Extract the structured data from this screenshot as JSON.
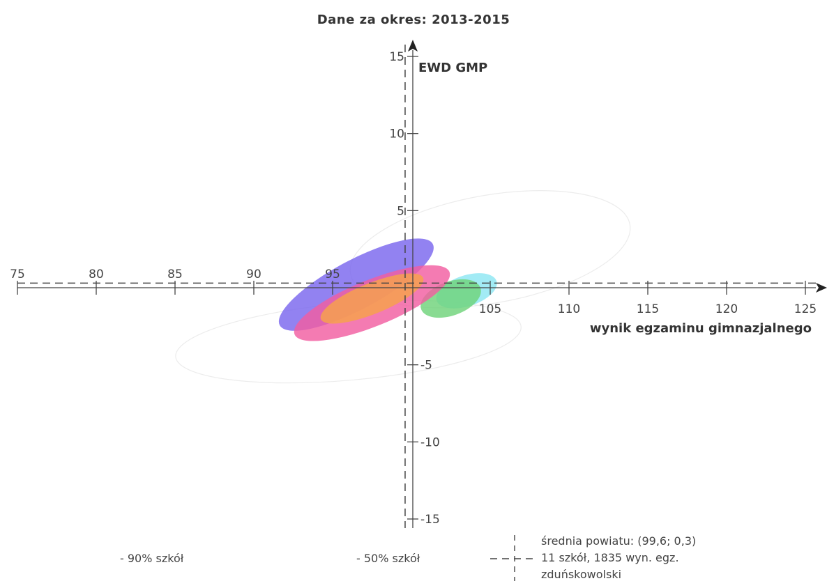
{
  "chart_data": {
    "type": "scatter",
    "title": "Dane za okres: 2013-2015",
    "xlabel": "wynik egzaminu gimnazjalnego",
    "ylabel": "EWD GMP",
    "xlim": [
      75,
      125
    ],
    "ylim": [
      -15,
      15
    ],
    "x_ticks": [
      75,
      80,
      85,
      90,
      95,
      105,
      110,
      115,
      120,
      125
    ],
    "y_ticks": [
      15,
      10,
      5,
      -5,
      -10,
      -15
    ],
    "grid": false,
    "mean": {
      "x": 99.6,
      "y": 0.3
    },
    "faint_ellipses": [
      {
        "cx": 105,
        "cy": 2.5,
        "rx": 9,
        "ry": 3.5,
        "angle": 10
      },
      {
        "cx": 96,
        "cy": -3.5,
        "rx": 11,
        "ry": 2.5,
        "angle": 5
      }
    ],
    "series": [
      {
        "cx": 96.5,
        "cy": 0.2,
        "rx": 5.5,
        "ry": 1.6,
        "angle": 28,
        "color": "#7a66ee"
      },
      {
        "cx": 103.5,
        "cy": -0.2,
        "rx": 2.0,
        "ry": 1.0,
        "angle": 18,
        "color": "#8de7f3"
      },
      {
        "cx": 102.5,
        "cy": -0.7,
        "rx": 2.0,
        "ry": 1.1,
        "angle": 20,
        "color": "#6fd37a"
      },
      {
        "cx": 97.5,
        "cy": -1.0,
        "rx": 5.3,
        "ry": 1.5,
        "angle": 22,
        "color": "#f25ea1"
      },
      {
        "cx": 97.5,
        "cy": -0.7,
        "rx": 3.5,
        "ry": 1.0,
        "angle": 22,
        "color": "#f6a24a"
      }
    ]
  },
  "legend": {
    "p90": "- 90% szkół",
    "p50": "- 50% szkół",
    "mean_line1": "średnia powiatu: (99,6; 0,3)",
    "mean_line2": "11 szkół, 1835 wyn. egz.",
    "mean_line3": "zduńskowolski"
  }
}
